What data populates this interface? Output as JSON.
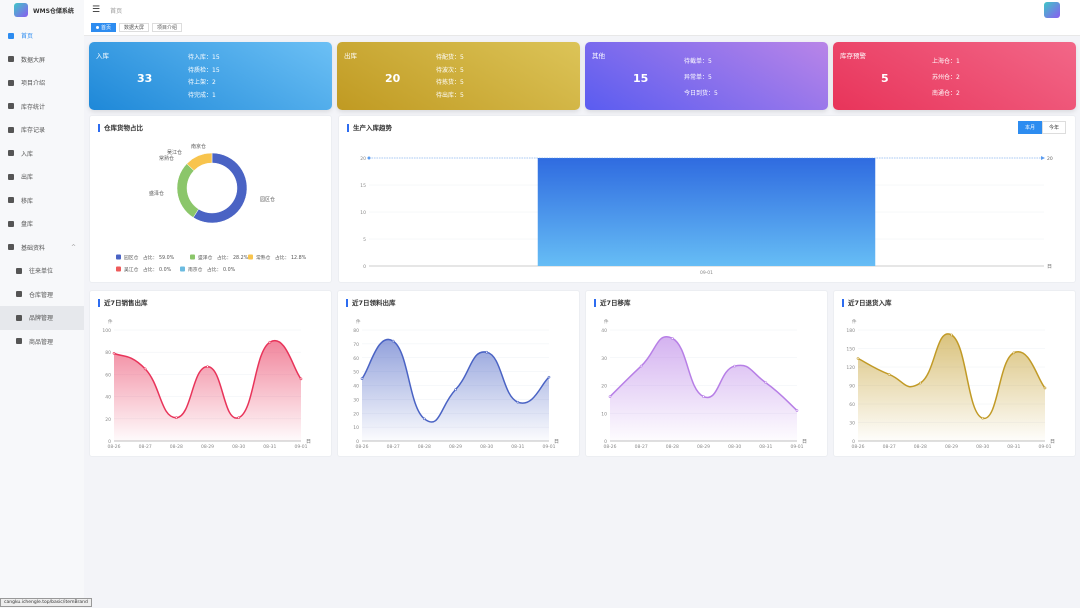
{
  "app": {
    "title": "WMS仓储系统",
    "breadcrumb": "首页"
  },
  "sidebar": {
    "items": [
      {
        "label": "首页",
        "active": true
      },
      {
        "label": "数据大屏"
      },
      {
        "label": "项目介绍"
      },
      {
        "label": "库存统计"
      },
      {
        "label": "库存记录"
      },
      {
        "label": "入库"
      },
      {
        "label": "出库"
      },
      {
        "label": "移库"
      },
      {
        "label": "盘库"
      },
      {
        "label": "基础资料",
        "expanded": true
      }
    ],
    "sub": [
      {
        "label": "往来单位"
      },
      {
        "label": "仓库管理"
      },
      {
        "label": "品牌管理",
        "selected": true
      },
      {
        "label": "商品管理"
      }
    ]
  },
  "tabs": [
    {
      "label": "首页",
      "active": true
    },
    {
      "label": "数据大屏"
    },
    {
      "label": "项目介绍"
    }
  ],
  "cards": [
    {
      "title": "入库",
      "total": "33",
      "items": [
        "待入库：15",
        "待质检：15",
        "待上架：2",
        "待完成：1"
      ],
      "colors": [
        "#1e88d8",
        "#6cc0f5"
      ]
    },
    {
      "title": "出库",
      "total": "20",
      "items": [
        "待配货：5",
        "待波次：5",
        "待拣货：5",
        "待出库：5"
      ],
      "colors": [
        "#c09a22",
        "#dcc458"
      ]
    },
    {
      "title": "其他",
      "total": "15",
      "items": [
        "待截单：5",
        "异常单：5",
        "今日到货：5"
      ],
      "colors": [
        "#5a5cf0",
        "#b985e8"
      ]
    },
    {
      "title": "库存预警",
      "total": "5",
      "items": [
        "上海仓：1",
        "苏州仓：2",
        "南通仓：2"
      ],
      "colors": [
        "#e8345a",
        "#f26788"
      ]
    }
  ],
  "donut": {
    "title": "仓库货物占比",
    "ratio_label": "占比：",
    "slices": [
      {
        "name": "园区仓",
        "pct": "59.0%",
        "value": 59.0,
        "color": "#4a63c4"
      },
      {
        "name": "盛泽仓",
        "pct": "28.2%",
        "value": 28.2,
        "color": "#8bc66a"
      },
      {
        "name": "常熟仓",
        "pct": "12.8%",
        "value": 12.8,
        "color": "#f8c44d"
      },
      {
        "name": "吴江仓",
        "pct": "0.0%",
        "value": 0,
        "color": "#ee5a5a"
      },
      {
        "name": "南京仓",
        "pct": "0.0%",
        "value": 0,
        "color": "#6bbbe0"
      }
    ]
  },
  "trend": {
    "title": "生产入库趋势",
    "buttons": [
      "本月",
      "今年"
    ],
    "active": "本月"
  },
  "chart_data": [
    {
      "type": "bar",
      "title": "生产入库趋势",
      "categories": [
        "09-01"
      ],
      "values": [
        20
      ],
      "ylim": [
        0,
        20
      ],
      "yticks": [
        0,
        5,
        10,
        15,
        20
      ],
      "xlabel": "日",
      "markline": "20",
      "color": "#2f6be0"
    },
    {
      "type": "area",
      "title": "近7日销售出库",
      "ylabel": "件",
      "xlabel": "日",
      "categories": [
        "08-26",
        "08-27",
        "08-28",
        "08-29",
        "08-30",
        "08-31",
        "09-01"
      ],
      "values": [
        79,
        65,
        21,
        67,
        21,
        89,
        56
      ],
      "yticks": [
        0,
        20,
        40,
        60,
        80,
        100
      ],
      "color": "#e8345a"
    },
    {
      "type": "area",
      "title": "近7日领料出库",
      "ylabel": "件",
      "xlabel": "日",
      "categories": [
        "08-26",
        "08-27",
        "08-28",
        "08-29",
        "08-30",
        "08-31",
        "09-01"
      ],
      "values": [
        45,
        72,
        16,
        37,
        64,
        28,
        46
      ],
      "yticks": [
        0,
        10,
        20,
        30,
        40,
        50,
        60,
        70,
        80
      ],
      "color": "#4a63c4"
    },
    {
      "type": "area",
      "title": "近7日移库",
      "ylabel": "件",
      "xlabel": "日",
      "categories": [
        "08-26",
        "08-27",
        "08-28",
        "08-29",
        "08-30",
        "08-31",
        "09-01"
      ],
      "values": [
        16,
        27,
        37,
        16,
        27,
        21,
        11
      ],
      "yticks": [
        0,
        10,
        20,
        30,
        40
      ],
      "color": "#b77fe6"
    },
    {
      "type": "area",
      "title": "近7日退货入库",
      "ylabel": "件",
      "xlabel": "日",
      "categories": [
        "08-26",
        "08-27",
        "08-28",
        "08-29",
        "08-30",
        "08-31",
        "09-01"
      ],
      "values": [
        134,
        108,
        94,
        172,
        37,
        143,
        86
      ],
      "yticks": [
        0,
        30,
        60,
        90,
        120,
        150,
        180
      ],
      "color": "#c19a26"
    }
  ],
  "status_url": "cangku.ichengle.top/basic/itemBrand"
}
